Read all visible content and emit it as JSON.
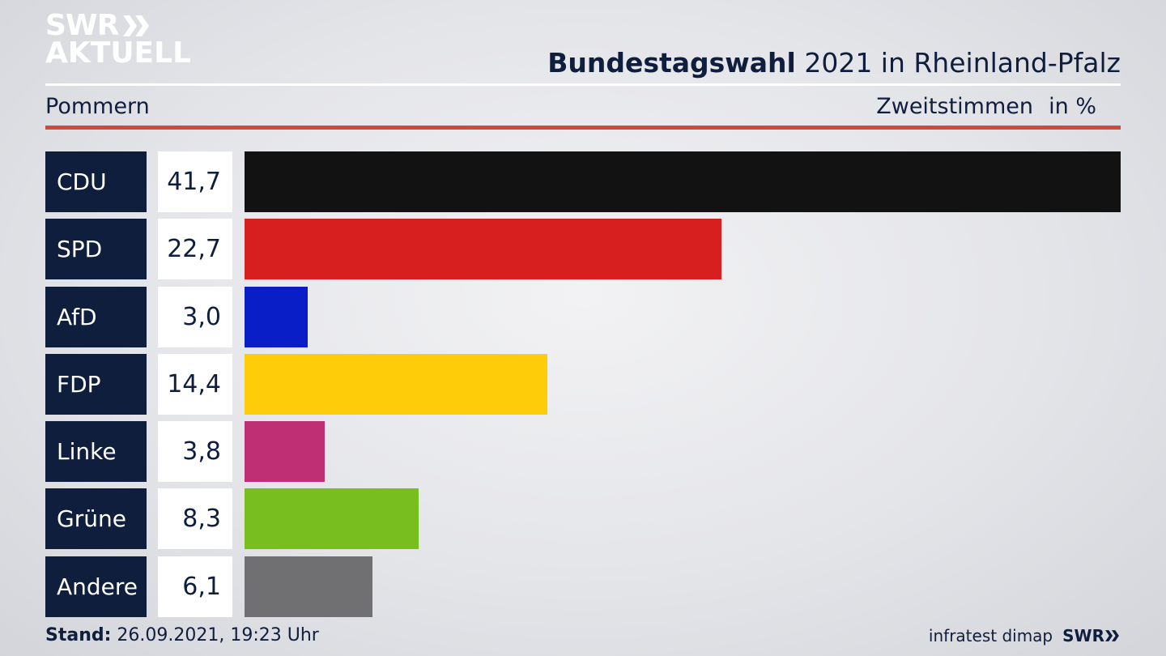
{
  "logo": {
    "line1": "SWR",
    "line2": "AKTUELL"
  },
  "header": {
    "title_bold": "Bundestagswahl",
    "title_rest": " 2021 in Rheinland-Pfalz",
    "region": "Pommern",
    "measure": "Zweitstimmen",
    "unit": "in %"
  },
  "chart_data": {
    "type": "bar",
    "orientation": "horizontal",
    "categories": [
      "CDU",
      "SPD",
      "AfD",
      "FDP",
      "Linke",
      "Grüne",
      "Andere"
    ],
    "values": [
      41.7,
      22.7,
      3.0,
      14.4,
      3.8,
      8.3,
      6.1
    ],
    "value_labels": [
      "41,7",
      "22,7",
      "3,0",
      "14,4",
      "3,8",
      "8,3",
      "6,1"
    ],
    "colors": [
      "#121212",
      "#d81f1f",
      "#0a1ec8",
      "#ffcc0a",
      "#bf2f73",
      "#78be1e",
      "#707073"
    ],
    "xlim": [
      0,
      41.7
    ]
  },
  "footer": {
    "stand_label": "Stand:",
    "stand_value": " 26.09.2021, 19:23 Uhr",
    "source": "infratest dimap",
    "brand": "SWR"
  }
}
